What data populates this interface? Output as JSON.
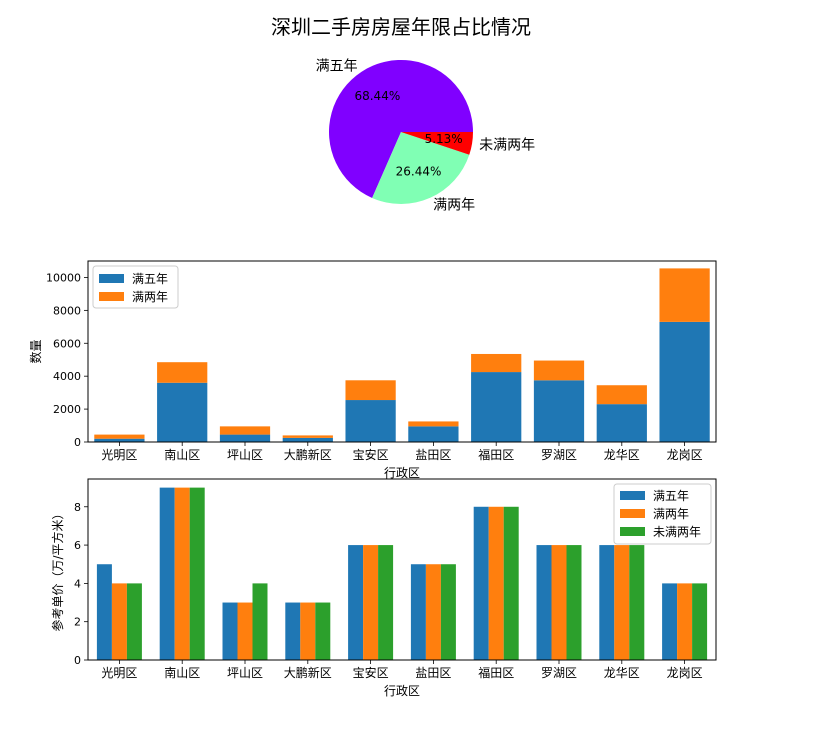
{
  "title": "深圳二手房房屋年限占比情况",
  "colors": {
    "pie_5y": "#8000ff",
    "pie_2y": "#80ffb4",
    "pie_under2": "#ff0000",
    "blue": "#1f77b4",
    "orange": "#ff7f0e",
    "green": "#2ca02c"
  },
  "chart_data": [
    {
      "type": "pie",
      "labels": [
        "满五年",
        "满两年",
        "未满两年"
      ],
      "values": [
        68.44,
        26.44,
        5.13
      ],
      "pct_labels": [
        "68.44%",
        "26.44%",
        "5.13%"
      ]
    },
    {
      "type": "bar",
      "stacked": true,
      "categories": [
        "光明区",
        "南山区",
        "坪山区",
        "大鹏新区",
        "宝安区",
        "盐田区",
        "福田区",
        "罗湖区",
        "龙华区",
        "龙岗区"
      ],
      "series": [
        {
          "name": "满五年",
          "values": [
            200,
            3600,
            450,
            250,
            2550,
            950,
            4250,
            3750,
            2300,
            7300
          ]
        },
        {
          "name": "满两年",
          "values": [
            250,
            1250,
            500,
            150,
            1200,
            300,
            1100,
            1200,
            1150,
            3250
          ]
        }
      ],
      "xlabel": "行政区",
      "ylabel": "数量",
      "ylim": [
        0,
        11000
      ],
      "yticks": [
        0,
        2000,
        4000,
        6000,
        8000,
        10000
      ],
      "legend": "top-left"
    },
    {
      "type": "bar",
      "grouped": true,
      "categories": [
        "光明区",
        "南山区",
        "坪山区",
        "大鹏新区",
        "宝安区",
        "盐田区",
        "福田区",
        "罗湖区",
        "龙华区",
        "龙岗区"
      ],
      "series": [
        {
          "name": "满五年",
          "values": [
            5,
            9,
            3,
            3,
            6,
            5,
            8,
            6,
            6,
            4
          ]
        },
        {
          "name": "满两年",
          "values": [
            4,
            9,
            3,
            3,
            6,
            5,
            8,
            6,
            6,
            4
          ]
        },
        {
          "name": "未满两年",
          "values": [
            4,
            9,
            4,
            3,
            6,
            5,
            8,
            6,
            6,
            4
          ]
        }
      ],
      "xlabel": "行政区",
      "ylabel": "参考单价（万/平方米）",
      "ylim": [
        0,
        9.45
      ],
      "yticks": [
        0,
        2,
        4,
        6,
        8
      ],
      "legend": "top-right"
    }
  ]
}
